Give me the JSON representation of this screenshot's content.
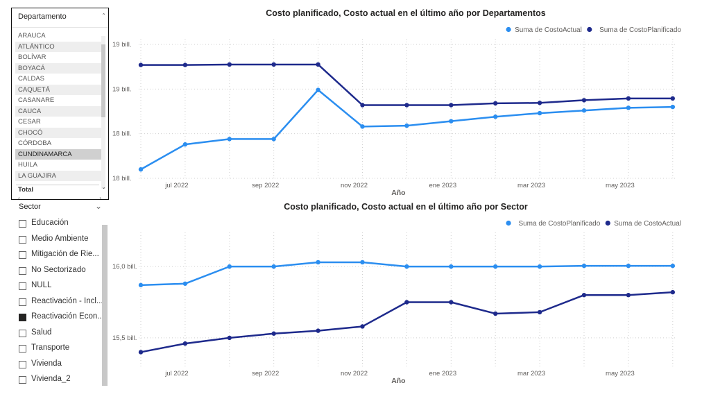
{
  "table": {
    "header": "Departamento",
    "rows": [
      "ARAUCA",
      "ATLÁNTICO",
      "BOLÍVAR",
      "BOYACÁ",
      "CALDAS",
      "CAQUETÁ",
      "CASANARE",
      "CAUCA",
      "CESAR",
      "CHOCÓ",
      "CÓRDOBA",
      "CUNDINAMARCA",
      "HUILA",
      "LA GUAJIRA"
    ],
    "selected": "CUNDINAMARCA",
    "total_label": "Total",
    "sort_icon": "caret-up-icon"
  },
  "slicer": {
    "title": "Sector",
    "items": [
      {
        "label": "Educación",
        "checked": false
      },
      {
        "label": "Medio Ambiente",
        "checked": false
      },
      {
        "label": "Mitigación de Rie...",
        "checked": false
      },
      {
        "label": "No Sectorizado",
        "checked": false
      },
      {
        "label": "NULL",
        "checked": false
      },
      {
        "label": "Reactivación - Incl...",
        "checked": false
      },
      {
        "label": "Reactivación Econ...",
        "checked": true
      },
      {
        "label": "Salud",
        "checked": false
      },
      {
        "label": "Transporte",
        "checked": false
      },
      {
        "label": "Vivienda",
        "checked": false
      },
      {
        "label": "Vivienda_2",
        "checked": false
      }
    ]
  },
  "colors": {
    "light": "#2b8ef0",
    "dark": "#1e2a8c",
    "grid": "#cfcfcf",
    "text": "#605e5c"
  },
  "chart_data": [
    {
      "type": "line",
      "title": "Costo planificado, Costo actual en el último año por Departamentos",
      "xlabel": "Año",
      "ylabel": "",
      "x_ticks": [
        "jul 2022",
        "sep 2022",
        "nov 2022",
        "ene 2023",
        "mar 2023",
        "may 2023"
      ],
      "y_ticks": [
        "19 bill.",
        "19 bill.",
        "18 bill.",
        "18 bill."
      ],
      "ylim": [
        18.0,
        19.5
      ],
      "x": [
        "2022-06",
        "2022-07",
        "2022-08",
        "2022-09",
        "2022-10",
        "2022-11",
        "2022-12",
        "2023-01",
        "2023-02",
        "2023-03",
        "2023-04",
        "2023-05",
        "2023-06"
      ],
      "legend_position": "top-right",
      "grid": true,
      "series": [
        {
          "name": "Suma de CostoActual",
          "color": "#2b8ef0",
          "values": [
            18.1,
            18.38,
            18.44,
            18.44,
            18.99,
            18.58,
            18.59,
            18.64,
            18.69,
            18.73,
            18.76,
            18.79,
            18.8
          ]
        },
        {
          "name": "Suma de CostoPlanificado",
          "color": "#1e2a8c",
          "values": [
            19.27,
            19.27,
            19.275,
            19.275,
            19.275,
            18.82,
            18.82,
            18.82,
            18.84,
            18.845,
            18.875,
            18.895,
            18.895
          ]
        }
      ]
    },
    {
      "type": "line",
      "title": "Costo planificado, Costo actual en el último año por Sector",
      "xlabel": "Año",
      "ylabel": "",
      "x_ticks": [
        "jul 2022",
        "sep 2022",
        "nov 2022",
        "ene 2023",
        "mar 2023",
        "may 2023"
      ],
      "y_ticks": [
        "16,0 bill.",
        "15,5 bill."
      ],
      "ylim": [
        15.3,
        16.2
      ],
      "x": [
        "2022-06",
        "2022-07",
        "2022-08",
        "2022-09",
        "2022-10",
        "2022-11",
        "2022-12",
        "2023-01",
        "2023-02",
        "2023-03",
        "2023-04",
        "2023-05",
        "2023-06"
      ],
      "legend_position": "top-right",
      "grid": true,
      "series": [
        {
          "name": "Suma de CostoPlanificado",
          "color": "#2b8ef0",
          "values": [
            15.87,
            15.88,
            16.0,
            16.0,
            16.03,
            16.03,
            16.0,
            16.0,
            16.0,
            16.0,
            16.005,
            16.005,
            16.005
          ]
        },
        {
          "name": "Suma de CostoActual",
          "color": "#1e2a8c",
          "values": [
            15.4,
            15.46,
            15.5,
            15.53,
            15.55,
            15.58,
            15.75,
            15.75,
            15.67,
            15.68,
            15.8,
            15.8,
            15.82
          ]
        }
      ]
    }
  ]
}
